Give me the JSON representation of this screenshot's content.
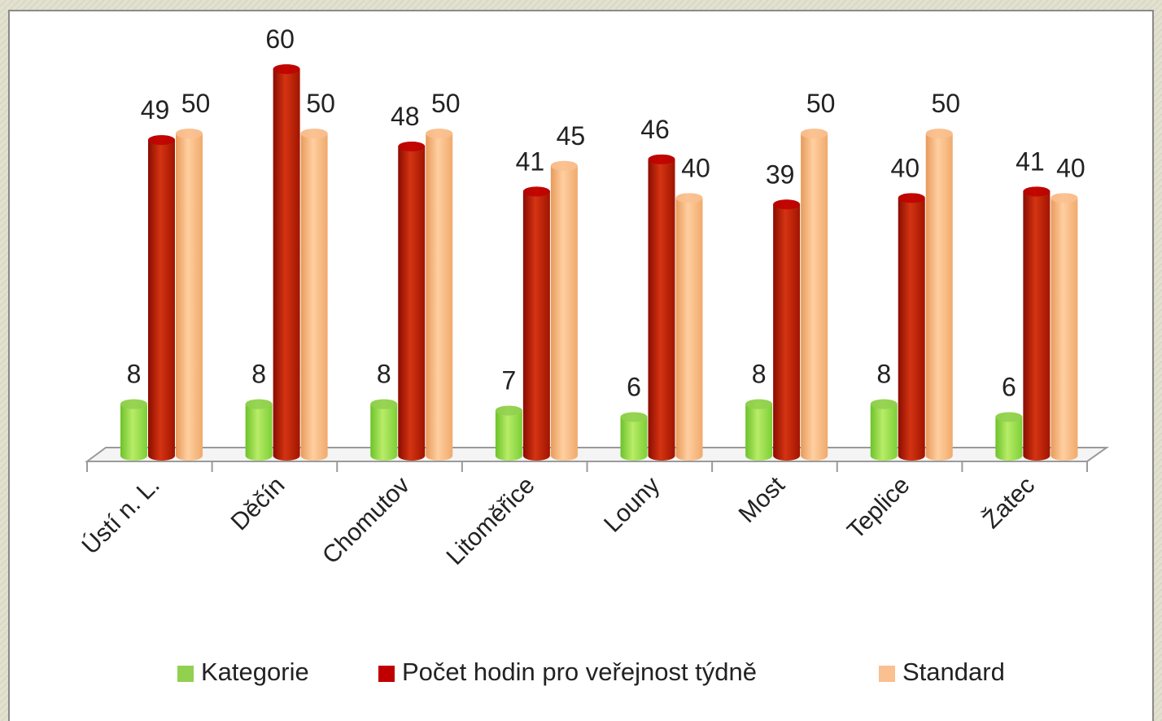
{
  "chart_data": {
    "type": "bar",
    "categories": [
      "Ústí n. L.",
      "Děčín",
      "Chomutov",
      "Litoměřice",
      "Louny",
      "Most",
      "Teplice",
      "Žatec"
    ],
    "series": [
      {
        "name": "Kategorie",
        "color": "#92d050",
        "values": [
          8,
          8,
          8,
          7,
          6,
          8,
          8,
          6
        ]
      },
      {
        "name": "Počet hodin pro veřejnost týdně",
        "color": "#c00000",
        "values": [
          49,
          60,
          48,
          41,
          46,
          39,
          40,
          41
        ]
      },
      {
        "name": "Standard",
        "color": "#fac090",
        "values": [
          50,
          50,
          50,
          45,
          40,
          50,
          50,
          40
        ]
      }
    ],
    "legend": "bottom"
  }
}
